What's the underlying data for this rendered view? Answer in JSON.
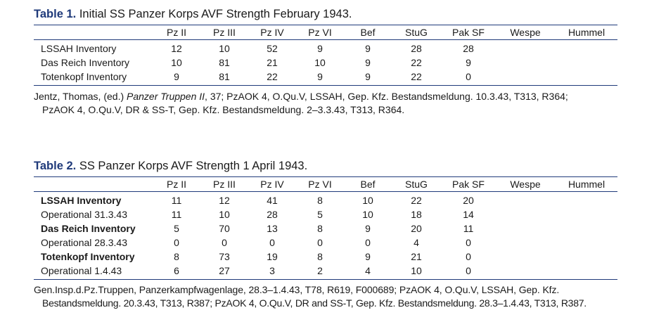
{
  "table1": {
    "label": "Table 1.",
    "title": "Initial SS Panzer Korps AVF Strength February 1943.",
    "headers": [
      "",
      "Pz II",
      "Pz III",
      "Pz IV",
      "Pz VI",
      "Bef",
      "StuG",
      "Pak SF",
      "Wespe",
      "Hummel"
    ],
    "rows": [
      {
        "name": "LSSAH Inventory",
        "bold": false,
        "values": [
          "12",
          "10",
          "52",
          "9",
          "9",
          "28",
          "28",
          "",
          ""
        ]
      },
      {
        "name": "Das Reich Inventory",
        "bold": false,
        "values": [
          "10",
          "81",
          "21",
          "10",
          "9",
          "22",
          "9",
          "",
          ""
        ]
      },
      {
        "name": "Totenkopf Inventory",
        "bold": false,
        "values": [
          "9",
          "81",
          "22",
          "9",
          "9",
          "22",
          "0",
          "",
          ""
        ]
      }
    ],
    "note": {
      "line1_pre": "Jentz, Thomas, (ed.) ",
      "line1_ital": "Panzer Truppen II",
      "line1_post": ", 37; PzAOK 4, O.Qu.V, LSSAH, Gep. Kfz. Bestandsmeldung. 10.3.43, T313, R364;",
      "line2": "PzAOK 4, O.Qu.V, DR & SS-T, Gep. Kfz. Bestandsmeldung. 2–3.3.43, T313, R364."
    }
  },
  "table2": {
    "label": "Table 2.",
    "title": "SS Panzer Korps AVF Strength 1 April 1943.",
    "headers": [
      "",
      "Pz II",
      "Pz III",
      "Pz IV",
      "Pz VI",
      "Bef",
      "StuG",
      "Pak SF",
      "Wespe",
      "Hummel"
    ],
    "rows": [
      {
        "name": "LSSAH Inventory",
        "bold": true,
        "values": [
          "11",
          "12",
          "41",
          "8",
          "10",
          "22",
          "20",
          "",
          ""
        ]
      },
      {
        "name": "Operational 31.3.43",
        "bold": false,
        "values": [
          "11",
          "10",
          "28",
          "5",
          "10",
          "18",
          "14",
          "",
          ""
        ]
      },
      {
        "name": "Das Reich Inventory",
        "bold": true,
        "values": [
          "5",
          "70",
          "13",
          "8",
          "9",
          "20",
          "11",
          "",
          ""
        ]
      },
      {
        "name": "Operational 28.3.43",
        "bold": false,
        "values": [
          "0",
          "0",
          "0",
          "0",
          "0",
          "4",
          "0",
          "",
          ""
        ]
      },
      {
        "name": "Totenkopf Inventory",
        "bold": true,
        "values": [
          "8",
          "73",
          "19",
          "8",
          "9",
          "21",
          "0",
          "",
          ""
        ]
      },
      {
        "name": "Operational 1.4.43",
        "bold": false,
        "values": [
          "6",
          "27",
          "3",
          "2",
          "4",
          "10",
          "0",
          "",
          ""
        ]
      }
    ],
    "note": {
      "line1": "Gen.Insp.d.Pz.Truppen, Panzerkampfwagenlage, 28.3–1.4.43, T78, R619, F000689; PzAOK 4, O.Qu.V, LSSAH, Gep. Kfz.",
      "line2": "Bestandsmeldung. 20.3.43, T313, R387; PzAOK 4, O.Qu.V, DR and SS-T, Gep. Kfz. Bestandsmeldung. 28.3–1.4.43, T313, R387."
    }
  }
}
